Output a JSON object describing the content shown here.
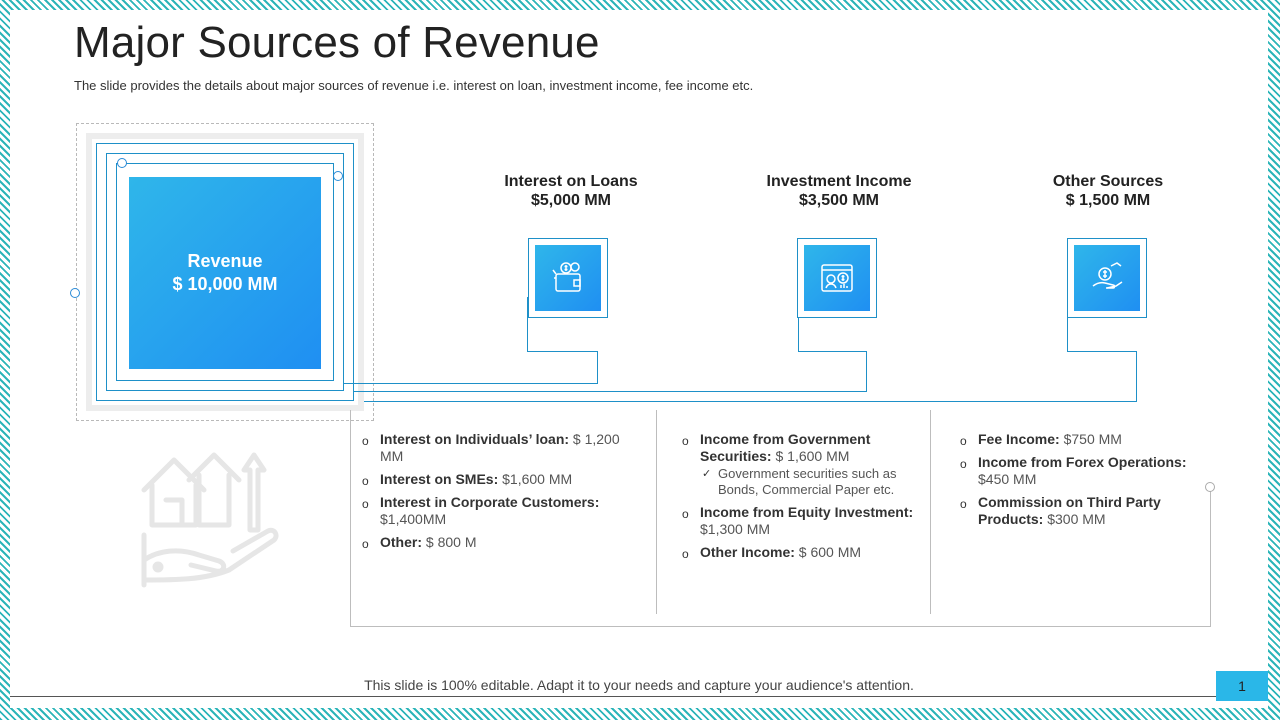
{
  "title": "Major Sources of Revenue",
  "subtitle": "The slide provides the details about major sources of revenue i.e. interest on loan, investment income, fee income etc.",
  "revenue": {
    "label": "Revenue",
    "value": "$ 10,000 MM"
  },
  "columns": [
    {
      "name": "Interest  on Loans",
      "value": "$5,000 MM",
      "icon": "wallet-coins-icon",
      "items": [
        {
          "bold": "Interest on Individuals’ loan:",
          "text": " $ 1,200 MM"
        },
        {
          "bold": "Interest on SMEs:",
          "text": " $1,600 MM"
        },
        {
          "bold": "Interest in Corporate Customers:",
          "text": " $1,400MM"
        },
        {
          "bold": "Other:",
          "text": " $ 800 M"
        }
      ]
    },
    {
      "name": "Investment Income",
      "value": "$3,500 MM",
      "icon": "investment-chart-icon",
      "items": [
        {
          "bold": "Income from Government Securities:",
          "text": " $ 1,600 MM",
          "sub": "Government securities such as Bonds, Commercial Paper etc."
        },
        {
          "bold": "Income from Equity Investment:",
          "text": " $1,300 MM"
        },
        {
          "bold": "Other Income:",
          "text": " $ 600 MM"
        }
      ]
    },
    {
      "name": "Other Sources",
      "value": "$ 1,500 MM",
      "icon": "hand-money-icon",
      "items": [
        {
          "bold": "Fee Income:",
          "text": " $750 MM"
        },
        {
          "bold": "Income from Forex Operations:",
          "text": " $450 MM"
        },
        {
          "bold": "Commission on Third Party Products:",
          "text": " $300 MM"
        }
      ]
    }
  ],
  "footer": "This slide is 100% editable. Adapt it to your needs and capture your audience's attention.",
  "page_number": "1",
  "colors": {
    "accent": "#1f8ff2",
    "accent_light": "#2fb6ea",
    "line": "#1e90c8",
    "border_pattern": "#2cb5b9"
  }
}
